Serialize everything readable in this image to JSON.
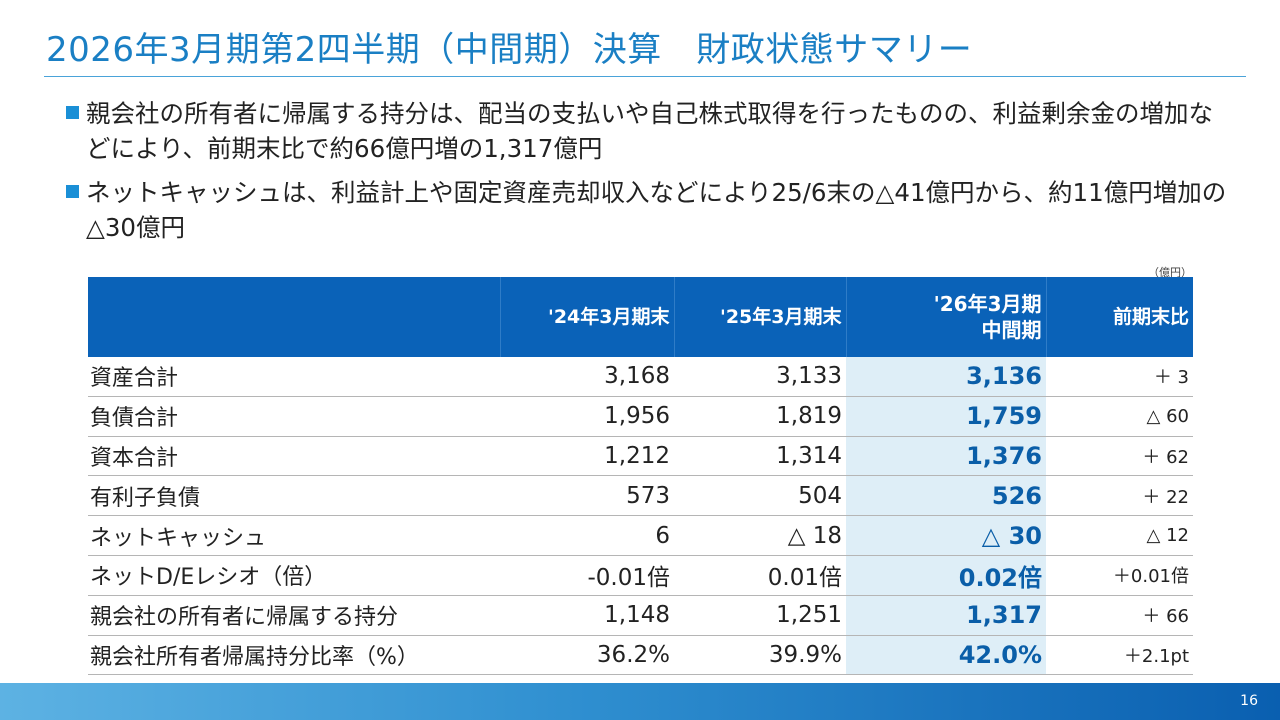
{
  "slide": {
    "title": "2026年3月期第2四半期（中間期）決算　財政状態サマリー",
    "page_number": "16"
  },
  "bullets": [
    {
      "text": "親会社の所有者に帰属する持分は、配当の支払いや自己株式取得を行ったものの、利益剰余金の増加などにより、前期末比で約66億円増の1,317億円"
    },
    {
      "text": "ネットキャッシュは、利益計上や固定資産売却収入などにより25/6末の△41億円から、約11億円増加の△30億円"
    }
  ],
  "table": {
    "unit_note": "（億円）",
    "headers": {
      "label": "",
      "fy24": "'24年3月期末",
      "fy25": "'25年3月期末",
      "cur_line1": "'26年3月期",
      "cur_line2": "中間期",
      "diff": "前期末比"
    },
    "rows": [
      {
        "label": "資産合計",
        "fy24": "3,168",
        "fy25": "3,133",
        "cur": "3,136",
        "diff": "＋ 3"
      },
      {
        "label": "負債合計",
        "fy24": "1,956",
        "fy25": "1,819",
        "cur": "1,759",
        "diff": "△ 60"
      },
      {
        "label": "資本合計",
        "fy24": "1,212",
        "fy25": "1,314",
        "cur": "1,376",
        "diff": "＋ 62"
      },
      {
        "label": "有利子負債",
        "fy24": "573",
        "fy25": "504",
        "cur": "526",
        "diff": "＋ 22"
      },
      {
        "label": "ネットキャッシュ",
        "fy24": "6",
        "fy25": "△ 18",
        "cur": "△ 30",
        "diff": "△ 12"
      },
      {
        "label": "ネットD/Eレシオ（倍）",
        "fy24": "-0.01倍",
        "fy25": "0.01倍",
        "cur": "0.02倍",
        "diff": "＋0.01倍"
      },
      {
        "label": "親会社の所有者に帰属する持分",
        "fy24": "1,148",
        "fy25": "1,251",
        "cur": "1,317",
        "diff": "＋ 66"
      },
      {
        "label": "親会社所有者帰属持分比率（%）",
        "fy24": "36.2%",
        "fy25": "39.9%",
        "cur": "42.0%",
        "diff": "＋2.1pt"
      }
    ]
  },
  "colors": {
    "title": "#1a7fc4",
    "header_bg": "#0a62b8",
    "highlight_bg": "#deeef7",
    "highlight_text": "#0a5ea8",
    "bullet": "#1a8fd6"
  }
}
